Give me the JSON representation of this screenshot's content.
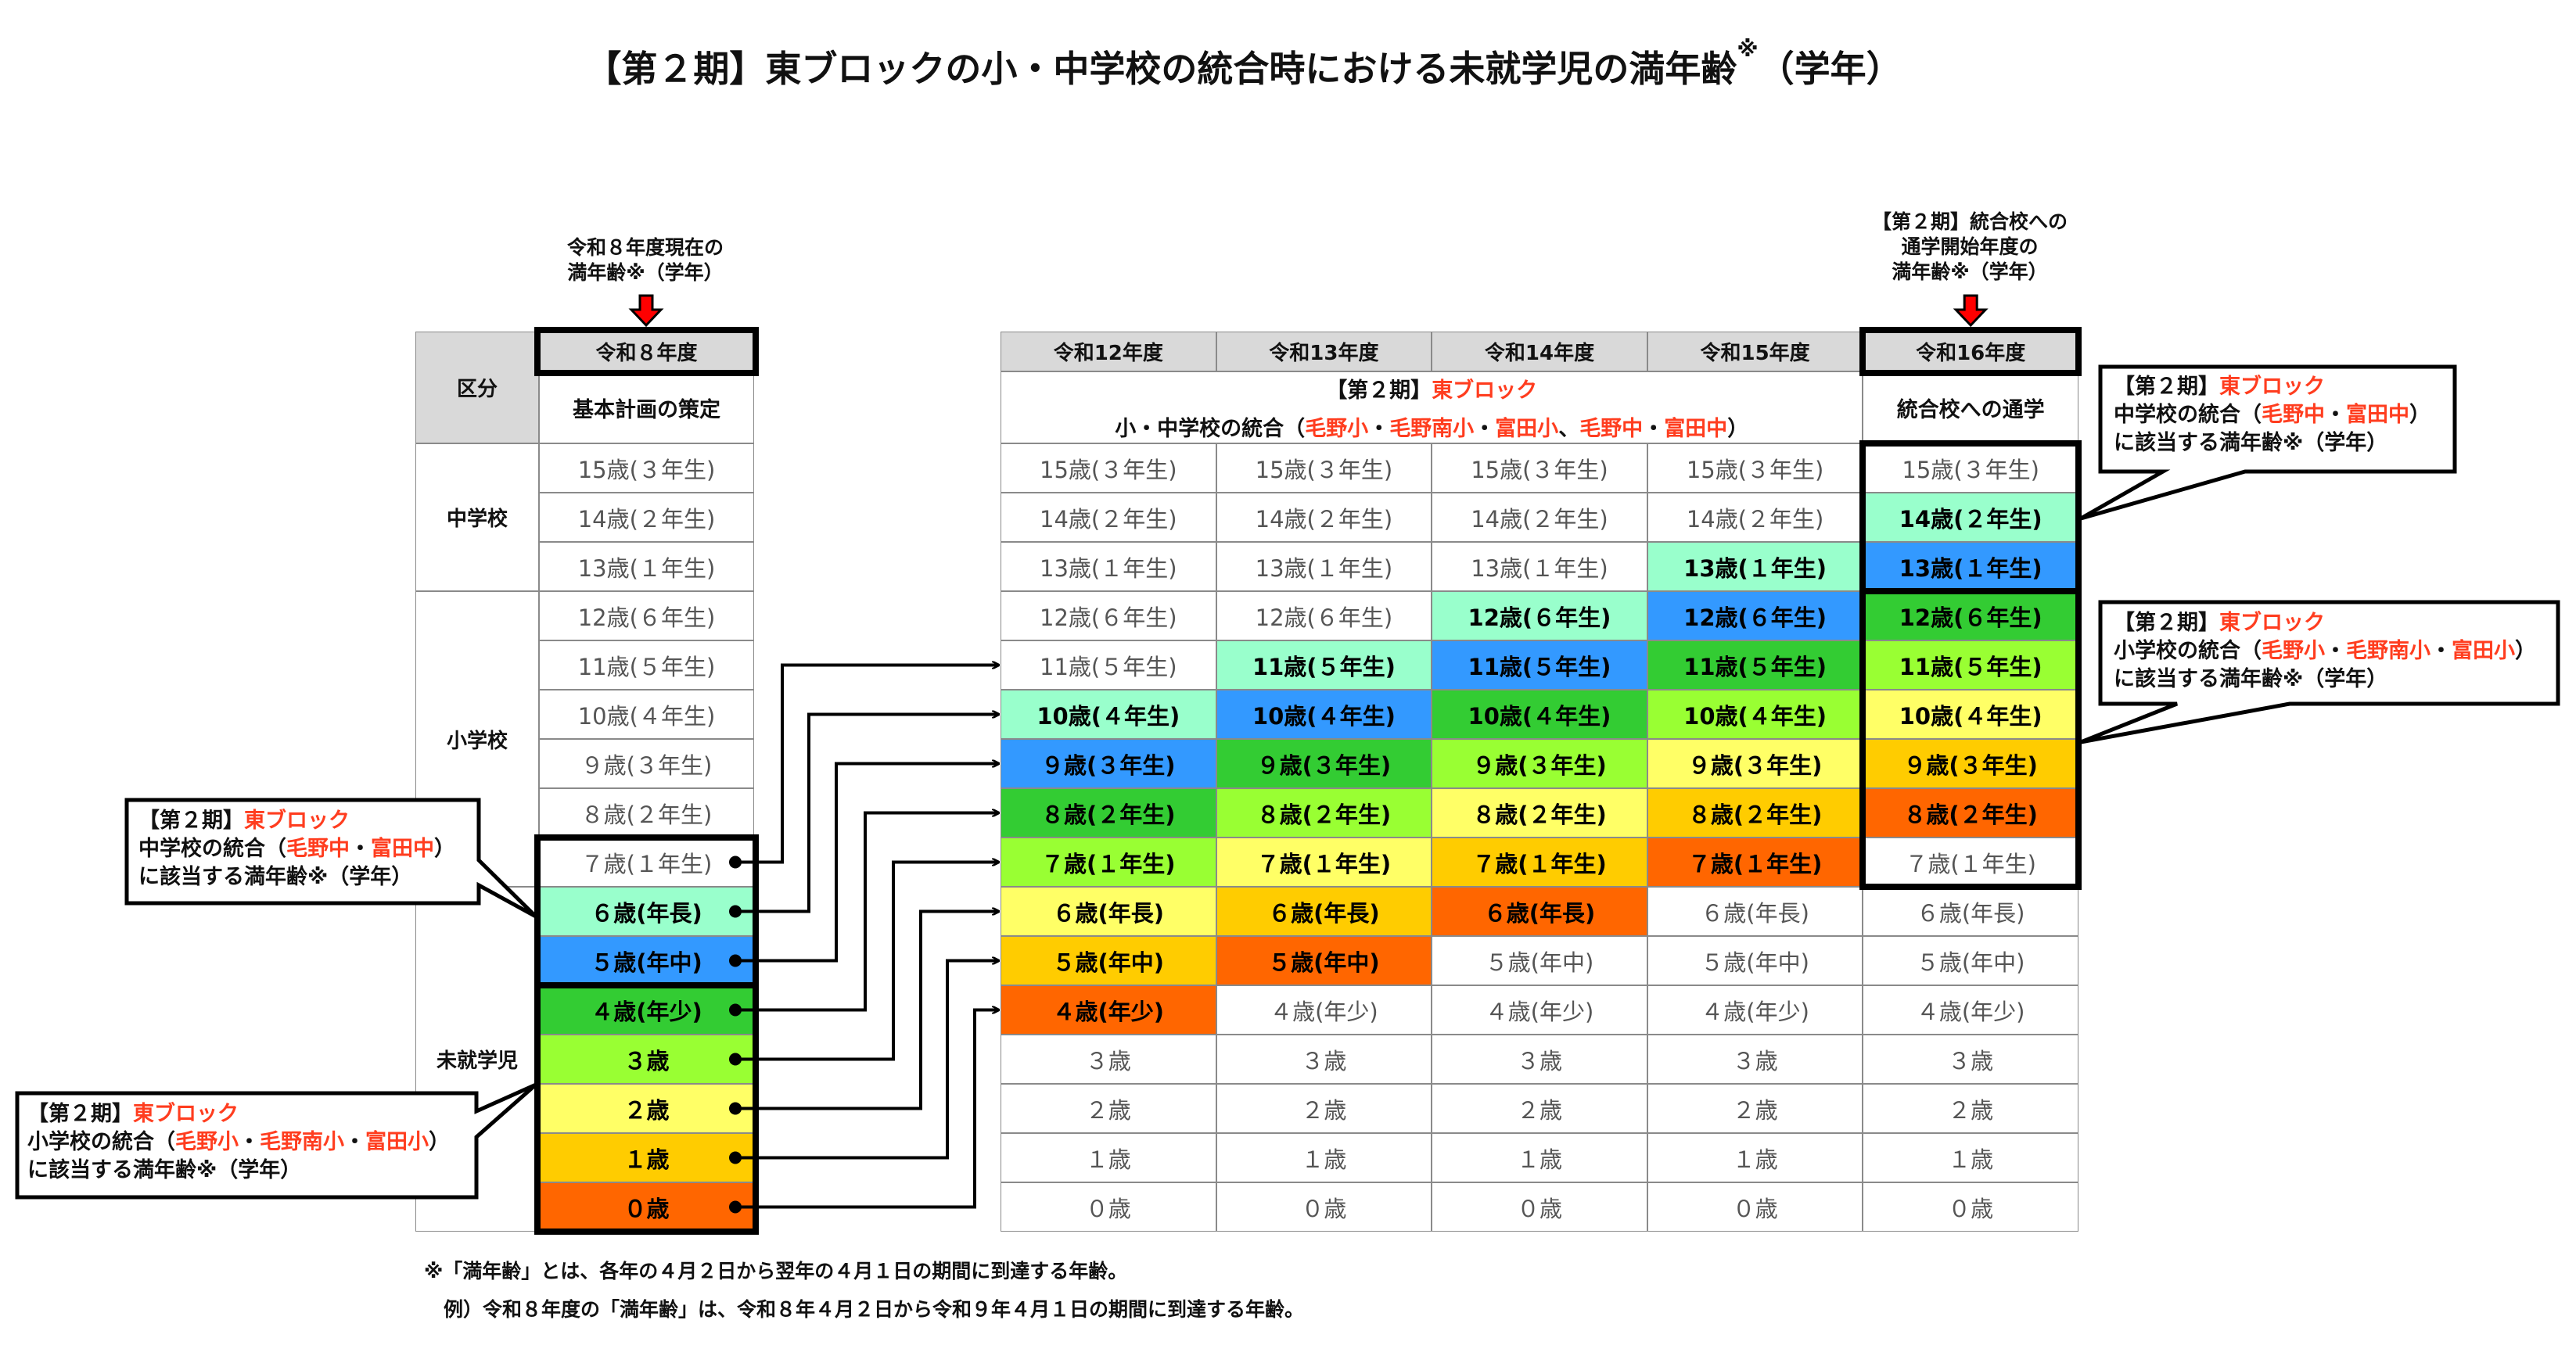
{
  "title": {
    "main": "【第２期】東ブロックの小・中学校の統合時における未就学児の満年齢",
    "note_mark": "※",
    "suffix": "（学年）"
  },
  "colors": {
    "accent_red": "#ff3d1f",
    "header_gray": "#d9d9d9",
    "arrow_red": "#ff0000"
  },
  "annotations": {
    "left": [
      "令和８年度現在の",
      "満年齢※（学年）"
    ],
    "right": [
      "【第２期】統合校への",
      "通学開始年度の",
      "満年齢※（学年）"
    ]
  },
  "age_labels": [
    "15歳(３年生)",
    "14歳(２年生)",
    "13歳(１年生)",
    "12歳(６年生)",
    "11歳(５年生)",
    "10歳(４年生)",
    "９歳(３年生)",
    "８歳(２年生)",
    "７歳(１年生)",
    "６歳(年長)",
    "５歳(年中)",
    "４歳(年少)",
    "３歳",
    "２歳",
    "１歳",
    "０歳"
  ],
  "left_table": {
    "kubun_header": "区分",
    "year": "令和８年度",
    "plan": "基本計画の策定",
    "groups": [
      {
        "label": "中学校",
        "rows": [
          0,
          2
        ]
      },
      {
        "label": "小学校",
        "rows": [
          3,
          8
        ]
      },
      {
        "label": "未就学児",
        "rows": [
          9,
          15
        ]
      }
    ],
    "cell_colors": [
      null,
      null,
      null,
      null,
      null,
      null,
      null,
      null,
      null,
      "#99ffcc",
      "#3399ff",
      "#33cc33",
      "#99ff33",
      "#ffff66",
      "#ffcc00",
      "#ff6600"
    ]
  },
  "right_table": {
    "plan_line1": [
      {
        "t": "【第２期】",
        "red": false
      },
      {
        "t": "東ブロック",
        "red": true
      }
    ],
    "plan_line2": [
      {
        "t": "小・中学校の統合（",
        "red": false
      },
      {
        "t": "毛野小",
        "red": true
      },
      {
        "t": "・",
        "red": false
      },
      {
        "t": "毛野南小",
        "red": true
      },
      {
        "t": "・",
        "red": false
      },
      {
        "t": "富田小",
        "red": true
      },
      {
        "t": "、",
        "red": false
      },
      {
        "t": "毛野中",
        "red": true
      },
      {
        "t": "・",
        "red": false
      },
      {
        "t": "富田中",
        "red": true
      },
      {
        "t": "）",
        "red": false
      }
    ],
    "final_plan": "統合校への通学",
    "columns": [
      {
        "year": "令和12年度",
        "cell_colors": [
          null,
          null,
          null,
          null,
          null,
          "#99ffcc",
          "#3399ff",
          "#33cc33",
          "#99ff33",
          "#ffff66",
          "#ffcc00",
          "#ff6600",
          null,
          null,
          null,
          null
        ]
      },
      {
        "year": "令和13年度",
        "cell_colors": [
          null,
          null,
          null,
          null,
          "#99ffcc",
          "#3399ff",
          "#33cc33",
          "#99ff33",
          "#ffff66",
          "#ffcc00",
          "#ff6600",
          null,
          null,
          null,
          null,
          null
        ]
      },
      {
        "year": "令和14年度",
        "cell_colors": [
          null,
          null,
          null,
          "#99ffcc",
          "#3399ff",
          "#33cc33",
          "#99ff33",
          "#ffff66",
          "#ffcc00",
          "#ff6600",
          null,
          null,
          null,
          null,
          null,
          null
        ]
      },
      {
        "year": "令和15年度",
        "cell_colors": [
          null,
          null,
          "#99ffcc",
          "#3399ff",
          "#33cc33",
          "#99ff33",
          "#ffff66",
          "#ffcc00",
          "#ff6600",
          null,
          null,
          null,
          null,
          null,
          null,
          null
        ]
      },
      {
        "year": "令和16年度",
        "cell_colors": [
          null,
          "#99ffcc",
          "#3399ff",
          "#33cc33",
          "#99ff33",
          "#ffff66",
          "#ffcc00",
          "#ff6600",
          null,
          null,
          null,
          null,
          null,
          null,
          null,
          null
        ]
      }
    ]
  },
  "callouts": {
    "junior_high": [
      [
        {
          "t": "【第２期】",
          "red": false
        },
        {
          "t": "東ブロック",
          "red": true
        }
      ],
      [
        {
          "t": "中学校の統合（",
          "red": false
        },
        {
          "t": "毛野中",
          "red": true
        },
        {
          "t": "・",
          "red": false
        },
        {
          "t": "富田中",
          "red": true
        },
        {
          "t": "）",
          "red": false
        }
      ],
      [
        {
          "t": "に該当する満年齢※（学年）",
          "red": false
        }
      ]
    ],
    "elementary": [
      [
        {
          "t": "【第２期】",
          "red": false
        },
        {
          "t": "東ブロック",
          "red": true
        }
      ],
      [
        {
          "t": "小学校の統合（",
          "red": false
        },
        {
          "t": "毛野小",
          "red": true
        },
        {
          "t": "・",
          "red": false
        },
        {
          "t": "毛野南小",
          "red": true
        },
        {
          "t": "・",
          "red": false
        },
        {
          "t": "富田小",
          "red": true
        },
        {
          "t": "）",
          "red": false
        }
      ],
      [
        {
          "t": "に該当する満年齢※（学年）",
          "red": false
        }
      ]
    ]
  },
  "footnotes": [
    "※「満年齢」とは、各年の４月２日から翌年の４月１日の期間に到達する年齢。",
    "例）令和８年度の「満年齢」は、令和８年４月２日から令和９年４月１日の期間に到達する年齢。"
  ]
}
